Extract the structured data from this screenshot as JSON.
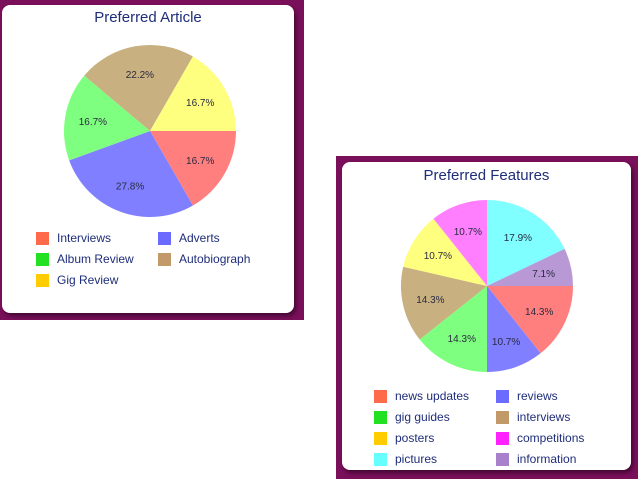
{
  "chart_data": [
    {
      "type": "pie",
      "title": "Preferred Article",
      "slices": [
        {
          "label": "Interviews",
          "value": 16.7,
          "display": "16.7%",
          "color": "#ff7f7f"
        },
        {
          "label": "Adverts",
          "value": 27.8,
          "display": "27.8%",
          "color": "#7f7fff"
        },
        {
          "label": "Album Review",
          "value": 16.7,
          "display": "16.7%",
          "color": "#7fff7f"
        },
        {
          "label": "Autobiograph",
          "value": 22.2,
          "display": "22.2%",
          "color": "#c8b080"
        },
        {
          "label": "Gig Review",
          "value": 16.7,
          "display": "16.7%",
          "color": "#ffff7f"
        }
      ],
      "legend": [
        {
          "label": "Interviews",
          "color": "#ff6a4a"
        },
        {
          "label": "Adverts",
          "color": "#6b6bff"
        },
        {
          "label": "Album Review",
          "color": "#22e022"
        },
        {
          "label": "Autobiograph",
          "color": "#c29a6a"
        },
        {
          "label": "Gig Review",
          "color": "#ffcc00"
        }
      ],
      "legend_placement": "bottom"
    },
    {
      "type": "pie",
      "title": "Preferred Features",
      "slices": [
        {
          "label": "news updates",
          "value": 14.3,
          "display": "14.3%",
          "color": "#ff7f7f"
        },
        {
          "label": "reviews",
          "value": 10.7,
          "display": "10.7%",
          "color": "#7f7fff"
        },
        {
          "label": "gig guides",
          "value": 14.3,
          "display": "14.3%",
          "color": "#7fff7f"
        },
        {
          "label": "interviews",
          "value": 14.3,
          "display": "14.3%",
          "color": "#c8b080"
        },
        {
          "label": "posters",
          "value": 10.7,
          "display": "10.7%",
          "color": "#ffff7f"
        },
        {
          "label": "competitions",
          "value": 10.7,
          "display": "10.7%",
          "color": "#ff7fff"
        },
        {
          "label": "pictures",
          "value": 17.9,
          "display": "17.9%",
          "color": "#7fffff"
        },
        {
          "label": "information",
          "value": 7.1,
          "display": "7.1%",
          "color": "#b899d6"
        }
      ],
      "legend": [
        {
          "label": "news updates",
          "color": "#ff6a4a"
        },
        {
          "label": "reviews",
          "color": "#6b6bff"
        },
        {
          "label": "gig guides",
          "color": "#22e022"
        },
        {
          "label": "interviews",
          "color": "#c29a6a"
        },
        {
          "label": "posters",
          "color": "#ffcc00"
        },
        {
          "label": "competitions",
          "color": "#ff22ff"
        },
        {
          "label": "pictures",
          "color": "#66ffff"
        },
        {
          "label": "information",
          "color": "#a880cc"
        }
      ],
      "legend_placement": "bottom"
    }
  ],
  "theme": {
    "frame_color": "#7a0f5a",
    "title_color": "#1f2d7a",
    "label_color": "#2a2a40"
  }
}
